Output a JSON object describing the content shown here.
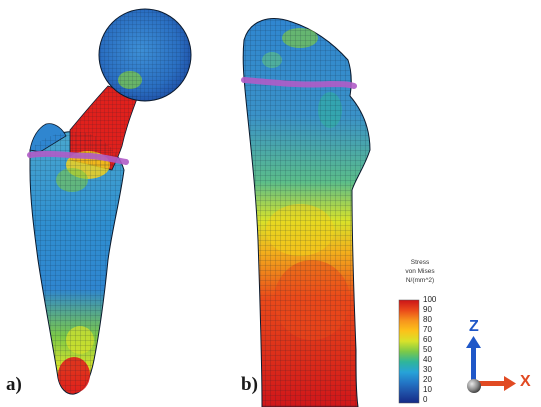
{
  "panels": [
    {
      "label": "a)"
    },
    {
      "label": "b)"
    }
  ],
  "colorbar": {
    "title_line1": "Stress",
    "title_line2": "von Mises",
    "unit": "N/(mm^2)",
    "ticks": [
      "100",
      "90",
      "80",
      "70",
      "60",
      "50",
      "40",
      "30",
      "20",
      "10",
      "0"
    ],
    "colors": [
      "#cc1418",
      "#ea4a1a",
      "#f7941d",
      "#fcc21a",
      "#d8e22a",
      "#7cc948",
      "#2fb59a",
      "#27a3d8",
      "#2377c6",
      "#1f4fa6",
      "#152a86"
    ]
  },
  "axes": {
    "z_label": "Z",
    "x_label": "X",
    "z_color": "#1f57c8",
    "x_color": "#e14a22"
  },
  "colors": {
    "cut_line": "#b05cc8",
    "mesh_line": "#0b1a2e",
    "stress_high": "#e0201c",
    "stress_mid": "#f3d21c",
    "stress_low": "#2f86d0"
  }
}
